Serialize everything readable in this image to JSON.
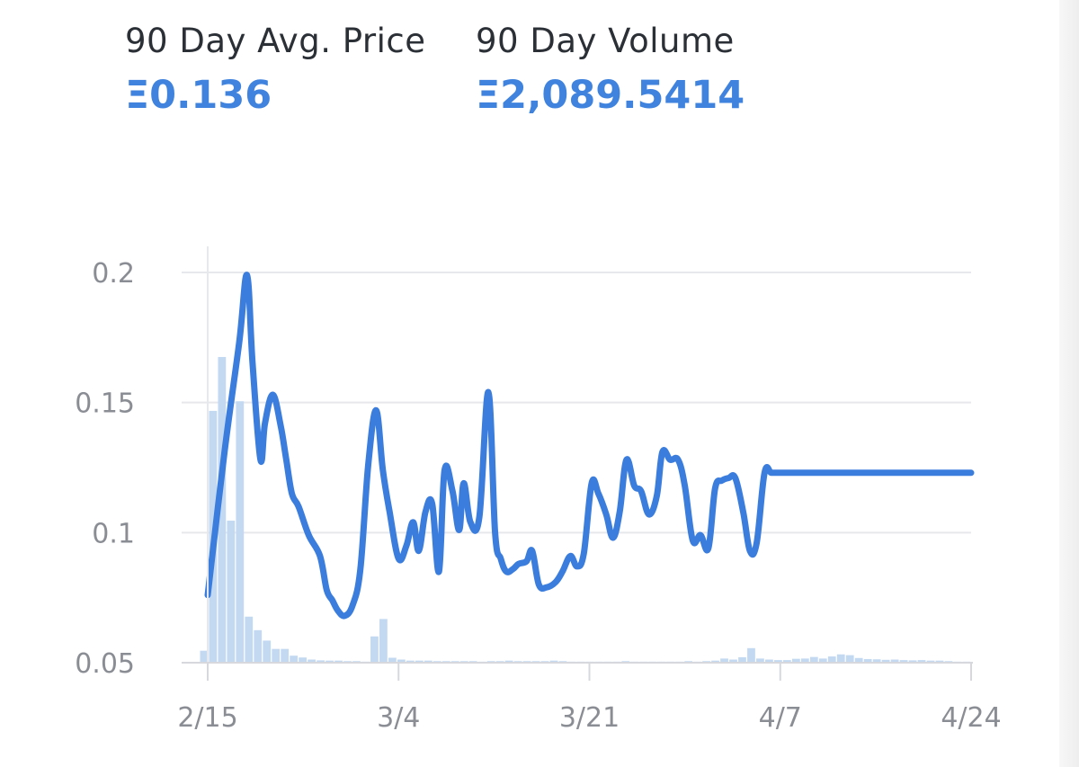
{
  "stats": {
    "avg_price": {
      "label": "90 Day Avg. Price",
      "value": "Ξ0.136"
    },
    "volume": {
      "label": "90 Day Volume",
      "value": "Ξ2,089.5414"
    }
  },
  "colors": {
    "line": "#3b7ddd",
    "volume_bar": "#c3d9f2",
    "grid": "#e7e8ec",
    "axis_text": "#8a8d94",
    "stat_value": "#3f83de"
  },
  "chart_data": {
    "type": "line",
    "title": "",
    "xlabel": "",
    "ylabel": "",
    "ylim": [
      0.05,
      0.2
    ],
    "yticks": [
      "0.05",
      "0.1",
      "0.15",
      "0.2"
    ],
    "xticks": [
      "2/15",
      "3/4",
      "3/21",
      "4/7",
      "4/24"
    ],
    "grid": true,
    "series": [
      {
        "kind": "line",
        "x": [
          0,
          1.5,
          2.8,
          3.5,
          4.0,
          4.7,
          5.1,
          5.8,
          6.5,
          7.0,
          7.5,
          8.1,
          9.0,
          10.0,
          10.6,
          11.1,
          11.6,
          12.2,
          12.9,
          13.6,
          14.3,
          15.0,
          15.6,
          16.2,
          17.0,
          17.7,
          18.3,
          18.8,
          19.4,
          20.0,
          20.6,
          21.1,
          21.8,
          22.4,
          22.8,
          23.4,
          24.2,
          25.0,
          25.6,
          26.1,
          26.6,
          27.2,
          27.7,
          28.4,
          28.9,
          29.5,
          30.2,
          31.0,
          31.6,
          32.3,
          32.9,
          33.5,
          34.2,
          34.8,
          35.5,
          36.1,
          36.7,
          37.3,
          38.0,
          38.6,
          39.3,
          40.0,
          40.5,
          41.2,
          41.9,
          42.5,
          43.2,
          43.9,
          44.6,
          45.2,
          45.8,
          46.4,
          47.0,
          47.7,
          48.3,
          48.9,
          49.6,
          50.2,
          50.8,
          51.3,
          52.0,
          52.7,
          53.3,
          54.0,
          54.6,
          55.3,
          56.0,
          56.6,
          57.2,
          57.9,
          58.5,
          59.1,
          59.8,
          60.5,
          61.2,
          61.9,
          62.6,
          63.3,
          64.0,
          64.6,
          65.2,
          65.8,
          66.4,
          67.0,
          67.6,
          68.0
        ],
        "values": [
          0.076,
          0.131,
          0.173,
          0.199,
          0.165,
          0.128,
          0.142,
          0.153,
          0.141,
          0.128,
          0.115,
          0.11,
          0.099,
          0.091,
          0.078,
          0.074,
          0.07,
          0.068,
          0.072,
          0.086,
          0.126,
          0.147,
          0.124,
          0.108,
          0.09,
          0.095,
          0.104,
          0.093,
          0.108,
          0.111,
          0.085,
          0.124,
          0.116,
          0.101,
          0.119,
          0.104,
          0.106,
          0.154,
          0.1,
          0.09,
          0.085,
          0.086,
          0.088,
          0.089,
          0.093,
          0.08,
          0.079,
          0.081,
          0.085,
          0.091,
          0.087,
          0.092,
          0.119,
          0.115,
          0.107,
          0.098,
          0.108,
          0.128,
          0.118,
          0.116,
          0.107,
          0.114,
          0.131,
          0.128,
          0.128,
          0.118,
          0.097,
          0.099,
          0.094,
          0.117,
          0.12,
          0.121,
          0.121,
          0.108,
          0.093,
          0.096,
          0.123,
          0.123,
          0.123,
          0.123,
          0.123,
          0.123,
          0.123,
          0.123,
          0.123,
          0.123,
          0.123,
          0.123,
          0.123,
          0.123,
          0.123,
          0.123,
          0.123,
          0.123,
          0.123,
          0.123,
          0.123,
          0.123,
          0.123,
          0.123,
          0.123,
          0.123,
          0.123,
          0.123,
          0.123,
          0.123
        ]
      },
      {
        "kind": "bar",
        "note_units": "volume",
        "values": [
          0.0546,
          0.1468,
          0.1675,
          0.1046,
          0.1505,
          0.0677,
          0.0625,
          0.0585,
          0.0553,
          0.0553,
          0.0527,
          0.052,
          0.0512,
          0.0509,
          0.0508,
          0.0508,
          0.0506,
          0.0506,
          0.0504,
          0.0601,
          0.0668,
          0.0519,
          0.0512,
          0.0508,
          0.0508,
          0.0508,
          0.0506,
          0.0506,
          0.0506,
          0.0506,
          0.0506,
          0.0504,
          0.0506,
          0.0506,
          0.0508,
          0.0506,
          0.0506,
          0.0506,
          0.0506,
          0.0508,
          0.0506,
          0.0504,
          0.0504,
          0.0504,
          0.0504,
          0.0504,
          0.0504,
          0.0506,
          0.0504,
          0.0504,
          0.0504,
          0.0504,
          0.0504,
          0.0504,
          0.0506,
          0.0504,
          0.0506,
          0.0508,
          0.0516,
          0.0512,
          0.0521,
          0.0556,
          0.0516,
          0.0512,
          0.051,
          0.051,
          0.0515,
          0.0516,
          0.0522,
          0.0516,
          0.0524,
          0.0532,
          0.0529,
          0.0518,
          0.0514,
          0.0513,
          0.0511,
          0.0512,
          0.051,
          0.0509,
          0.051,
          0.0508,
          0.0508,
          0.0506,
          0.0504,
          0.0504
        ]
      }
    ]
  }
}
